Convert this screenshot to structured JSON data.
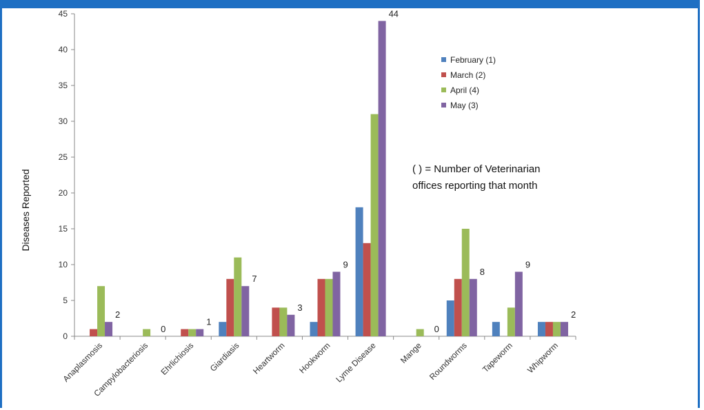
{
  "chart_data": {
    "type": "bar",
    "ylabel": "Diseases Reported",
    "xlabel": "",
    "ylim": [
      0,
      45
    ],
    "yticks": [
      0,
      5,
      10,
      15,
      20,
      25,
      30,
      35,
      40,
      45
    ],
    "grid": false,
    "legend_position": "top-right",
    "categories": [
      "Anaplasmosis",
      "Campylobacteriosis",
      "Ehrlichiosis",
      "Giardiasis",
      "Heartworm",
      "Hookworm",
      "Lyme Disease",
      "Mange",
      "Roundworms",
      "Tapeworm",
      "Whipworm"
    ],
    "series": [
      {
        "name": "February (1)",
        "color": "#4f81bd",
        "values": [
          0,
          0,
          0,
          2,
          0,
          2,
          18,
          0,
          5,
          2,
          2
        ]
      },
      {
        "name": "March (2)",
        "color": "#c0504d",
        "values": [
          1,
          0,
          1,
          8,
          4,
          8,
          13,
          0,
          8,
          0,
          2
        ]
      },
      {
        "name": "April (4)",
        "color": "#9bbb59",
        "values": [
          7,
          1,
          1,
          11,
          4,
          8,
          31,
          1,
          15,
          4,
          2
        ]
      },
      {
        "name": "May (3)",
        "color": "#8064a2",
        "values": [
          2,
          0,
          1,
          7,
          3,
          9,
          44,
          0,
          8,
          9,
          2
        ]
      }
    ],
    "data_labels": {
      "series": "May (3)",
      "values": [
        "2",
        "0",
        "1",
        "7",
        "3",
        "9",
        "44",
        "0",
        "8",
        "9",
        "2"
      ]
    },
    "annotation": {
      "lines": [
        "( ) = Number of Veterinarian",
        "offices reporting that month"
      ]
    }
  }
}
